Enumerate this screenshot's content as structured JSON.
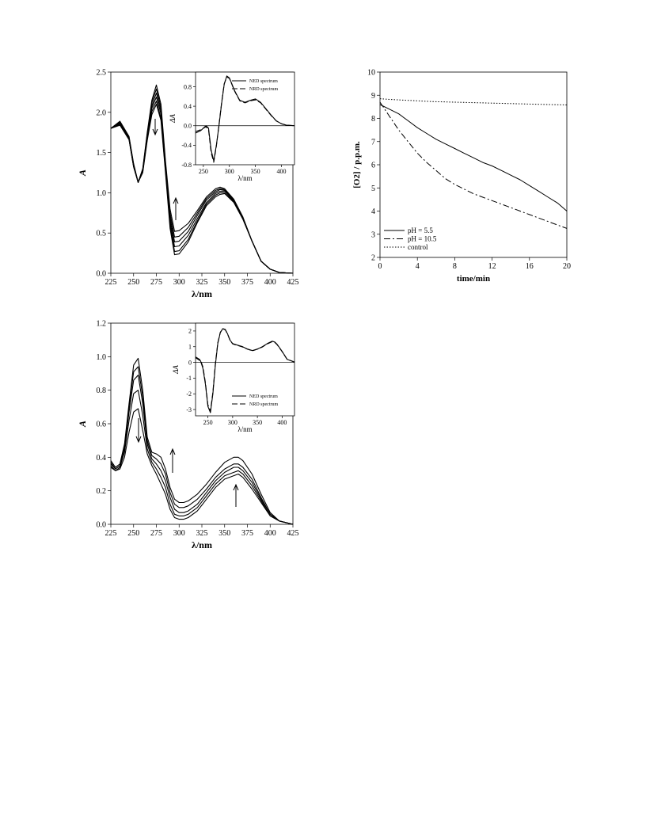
{
  "chart_data": [
    {
      "id": "topLeft",
      "type": "line",
      "xlabel": "λ/nm",
      "ylabel": "A",
      "xlim": [
        225,
        425
      ],
      "ylim": [
        0,
        2.5
      ],
      "xticks": [
        "225",
        "250",
        "275",
        "300",
        "325",
        "350",
        "375",
        "400",
        "425"
      ],
      "yticks": [
        "0.0",
        "0.5",
        "1.0",
        "1.5",
        "2.0",
        "2.5"
      ],
      "x": [
        225,
        235,
        245,
        250,
        255,
        260,
        265,
        270,
        275,
        280,
        285,
        290,
        295,
        300,
        310,
        320,
        330,
        340,
        345,
        350,
        360,
        370,
        380,
        390,
        400,
        410,
        425
      ],
      "series": [
        {
          "values": [
            1.8,
            1.84,
            1.66,
            1.32,
            1.13,
            1.3,
            1.75,
            2.15,
            2.34,
            2.1,
            1.4,
            0.8,
            0.52,
            0.53,
            0.62,
            0.78,
            0.95,
            1.05,
            1.07,
            1.05,
            0.92,
            0.7,
            0.4,
            0.15,
            0.05,
            0.01,
            0.0
          ]
        },
        {
          "values": [
            1.8,
            1.85,
            1.66,
            1.32,
            1.13,
            1.29,
            1.73,
            2.12,
            2.29,
            2.06,
            1.37,
            0.75,
            0.45,
            0.46,
            0.57,
            0.75,
            0.93,
            1.03,
            1.05,
            1.04,
            0.91,
            0.69,
            0.4,
            0.15,
            0.05,
            0.01,
            0.0
          ]
        },
        {
          "values": [
            1.8,
            1.86,
            1.67,
            1.33,
            1.13,
            1.28,
            1.71,
            2.08,
            2.24,
            2.02,
            1.34,
            0.7,
            0.39,
            0.4,
            0.52,
            0.72,
            0.91,
            1.01,
            1.04,
            1.03,
            0.9,
            0.69,
            0.4,
            0.15,
            0.05,
            0.01,
            0.0
          ]
        },
        {
          "values": [
            1.8,
            1.87,
            1.68,
            1.34,
            1.13,
            1.27,
            1.69,
            2.05,
            2.19,
            1.98,
            1.31,
            0.65,
            0.33,
            0.34,
            0.47,
            0.68,
            0.88,
            0.99,
            1.02,
            1.02,
            0.9,
            0.68,
            0.4,
            0.15,
            0.05,
            0.01,
            0.0
          ]
        },
        {
          "values": [
            1.8,
            1.88,
            1.69,
            1.35,
            1.13,
            1.26,
            1.67,
            2.01,
            2.14,
            1.93,
            1.28,
            0.6,
            0.27,
            0.28,
            0.42,
            0.65,
            0.86,
            0.97,
            1.0,
            1.0,
            0.89,
            0.68,
            0.4,
            0.15,
            0.05,
            0.01,
            0.0
          ]
        },
        {
          "values": [
            1.8,
            1.89,
            1.7,
            1.36,
            1.13,
            1.25,
            1.65,
            1.97,
            2.1,
            1.9,
            1.25,
            0.56,
            0.23,
            0.24,
            0.39,
            0.63,
            0.84,
            0.95,
            0.98,
            0.99,
            0.88,
            0.67,
            0.4,
            0.15,
            0.05,
            0.01,
            0.0
          ]
        }
      ],
      "inset": {
        "xlabel": "λ/nm",
        "ylabel": "ΔA",
        "xlim": [
          235,
          425
        ],
        "ylim": [
          -0.8,
          1.1
        ],
        "xticks": [
          "250",
          "300",
          "350",
          "400"
        ],
        "yticks": [
          "-0.8",
          "-0.4",
          "0.0",
          "0.4",
          "0.8"
        ],
        "legend": [
          "NED spectrum",
          "NRD spectrum"
        ],
        "x": [
          235,
          245,
          255,
          260,
          265,
          270,
          275,
          280,
          285,
          290,
          295,
          300,
          305,
          310,
          315,
          320,
          330,
          340,
          350,
          360,
          370,
          380,
          390,
          400,
          410,
          425
        ],
        "series": [
          {
            "name": "NED spectrum",
            "values": [
              -0.15,
              -0.1,
              0.0,
              -0.05,
              -0.5,
              -0.72,
              -0.4,
              0.0,
              0.45,
              0.85,
              1.02,
              0.98,
              0.85,
              0.72,
              0.62,
              0.52,
              0.48,
              0.52,
              0.55,
              0.48,
              0.35,
              0.22,
              0.1,
              0.04,
              0.01,
              0.0
            ]
          },
          {
            "name": "NRD spectrum",
            "values": [
              -0.12,
              -0.08,
              -0.02,
              -0.08,
              -0.55,
              -0.75,
              -0.42,
              0.02,
              0.47,
              0.86,
              1.0,
              0.97,
              0.84,
              0.71,
              0.61,
              0.51,
              0.47,
              0.51,
              0.53,
              0.47,
              0.34,
              0.21,
              0.1,
              0.04,
              0.01,
              0.0
            ]
          }
        ]
      }
    },
    {
      "id": "bottomLeft",
      "type": "line",
      "xlabel": "λ/nm",
      "ylabel": "A",
      "xlim": [
        225,
        425
      ],
      "ylim": [
        0,
        1.2
      ],
      "xticks": [
        "225",
        "250",
        "275",
        "300",
        "325",
        "350",
        "375",
        "400",
        "425"
      ],
      "yticks": [
        "0.0",
        "0.2",
        "0.4",
        "0.6",
        "0.8",
        "1.0",
        "1.2"
      ],
      "x": [
        225,
        230,
        235,
        240,
        245,
        250,
        255,
        260,
        265,
        270,
        275,
        280,
        285,
        290,
        295,
        300,
        305,
        310,
        320,
        330,
        340,
        350,
        360,
        365,
        370,
        380,
        390,
        400,
        410,
        425
      ],
      "series": [
        {
          "values": [
            0.38,
            0.34,
            0.36,
            0.48,
            0.72,
            0.95,
            0.99,
            0.8,
            0.52,
            0.43,
            0.42,
            0.4,
            0.33,
            0.22,
            0.15,
            0.13,
            0.13,
            0.14,
            0.18,
            0.24,
            0.31,
            0.37,
            0.4,
            0.4,
            0.38,
            0.3,
            0.18,
            0.07,
            0.02,
            0.0
          ]
        },
        {
          "values": [
            0.37,
            0.33,
            0.35,
            0.47,
            0.7,
            0.91,
            0.94,
            0.76,
            0.5,
            0.41,
            0.39,
            0.36,
            0.3,
            0.19,
            0.12,
            0.1,
            0.1,
            0.11,
            0.15,
            0.21,
            0.28,
            0.33,
            0.36,
            0.36,
            0.34,
            0.27,
            0.16,
            0.06,
            0.02,
            0.0
          ]
        },
        {
          "values": [
            0.36,
            0.33,
            0.35,
            0.45,
            0.67,
            0.86,
            0.89,
            0.72,
            0.48,
            0.39,
            0.36,
            0.32,
            0.26,
            0.16,
            0.09,
            0.07,
            0.07,
            0.08,
            0.12,
            0.19,
            0.26,
            0.31,
            0.34,
            0.34,
            0.32,
            0.25,
            0.15,
            0.06,
            0.02,
            0.0
          ]
        },
        {
          "values": [
            0.35,
            0.32,
            0.34,
            0.43,
            0.62,
            0.78,
            0.8,
            0.65,
            0.45,
            0.37,
            0.33,
            0.28,
            0.22,
            0.12,
            0.06,
            0.05,
            0.05,
            0.06,
            0.1,
            0.17,
            0.24,
            0.29,
            0.31,
            0.32,
            0.3,
            0.23,
            0.14,
            0.05,
            0.02,
            0.0
          ]
        },
        {
          "values": [
            0.34,
            0.32,
            0.33,
            0.4,
            0.55,
            0.67,
            0.69,
            0.56,
            0.42,
            0.35,
            0.3,
            0.24,
            0.18,
            0.09,
            0.04,
            0.03,
            0.03,
            0.04,
            0.08,
            0.15,
            0.22,
            0.27,
            0.29,
            0.3,
            0.28,
            0.21,
            0.13,
            0.05,
            0.02,
            0.0
          ]
        }
      ],
      "inset": {
        "xlabel": "λ/nm",
        "ylabel": "ΔA",
        "xlim": [
          225,
          425
        ],
        "ylim": [
          -3.4,
          2.5
        ],
        "xticks": [
          "250",
          "300",
          "350",
          "400"
        ],
        "yticks": [
          "-3",
          "-2",
          "-1",
          "0",
          "1",
          "2"
        ],
        "legend": [
          "NED spectrum",
          "NRD spectrum"
        ],
        "x": [
          225,
          235,
          240,
          245,
          250,
          255,
          260,
          265,
          270,
          275,
          280,
          285,
          290,
          295,
          300,
          310,
          320,
          330,
          340,
          350,
          360,
          370,
          380,
          385,
          390,
          400,
          410,
          425
        ],
        "series": [
          {
            "name": "NED spectrum",
            "values": [
              0.3,
              0.1,
              -0.4,
              -1.4,
              -2.8,
              -3.2,
              -2.0,
              -0.2,
              1.2,
              1.9,
              2.15,
              2.1,
              1.8,
              1.4,
              1.2,
              1.1,
              1.0,
              0.85,
              0.75,
              0.85,
              1.0,
              1.2,
              1.35,
              1.3,
              1.15,
              0.7,
              0.2,
              0.02
            ]
          },
          {
            "name": "NRD spectrum",
            "values": [
              0.35,
              0.15,
              -0.3,
              -1.3,
              -2.7,
              -3.1,
              -1.9,
              -0.1,
              1.25,
              1.92,
              2.13,
              2.08,
              1.78,
              1.38,
              1.18,
              1.08,
              0.98,
              0.84,
              0.74,
              0.84,
              0.98,
              1.18,
              1.32,
              1.28,
              1.13,
              0.68,
              0.2,
              0.02
            ]
          }
        ]
      }
    },
    {
      "id": "right",
      "type": "line",
      "xlabel": "time/min",
      "ylabel": "[O2] / p.p.m.",
      "xlim": [
        0,
        20
      ],
      "ylim": [
        2,
        10
      ],
      "xticks": [
        "0",
        "4",
        "8",
        "12",
        "16",
        "20"
      ],
      "yticks": [
        "2",
        "3",
        "4",
        "5",
        "6",
        "7",
        "8",
        "9",
        "10"
      ],
      "legend": [
        "pH = 5.5",
        "pH = 10.5",
        "control"
      ],
      "x": [
        0,
        1,
        2,
        3,
        4,
        5,
        6,
        7,
        8,
        9,
        10,
        11,
        12,
        13,
        14,
        15,
        16,
        17,
        18,
        19,
        20
      ],
      "series": [
        {
          "name": "pH = 5.5",
          "values": [
            8.6,
            8.4,
            8.2,
            7.9,
            7.6,
            7.35,
            7.1,
            6.9,
            6.7,
            6.5,
            6.3,
            6.1,
            5.95,
            5.75,
            5.55,
            5.35,
            5.1,
            4.85,
            4.6,
            4.35,
            4.0
          ]
        },
        {
          "name": "pH = 10.5",
          "values": [
            8.7,
            8.1,
            7.5,
            7.0,
            6.5,
            6.1,
            5.75,
            5.4,
            5.15,
            4.95,
            4.75,
            4.6,
            4.45,
            4.3,
            4.15,
            4.0,
            3.85,
            3.7,
            3.55,
            3.4,
            3.25
          ]
        },
        {
          "name": "control",
          "values": [
            8.85,
            8.82,
            8.8,
            8.78,
            8.76,
            8.74,
            8.72,
            8.71,
            8.7,
            8.69,
            8.68,
            8.67,
            8.66,
            8.65,
            8.64,
            8.63,
            8.62,
            8.61,
            8.6,
            8.59,
            8.58
          ]
        }
      ]
    }
  ]
}
